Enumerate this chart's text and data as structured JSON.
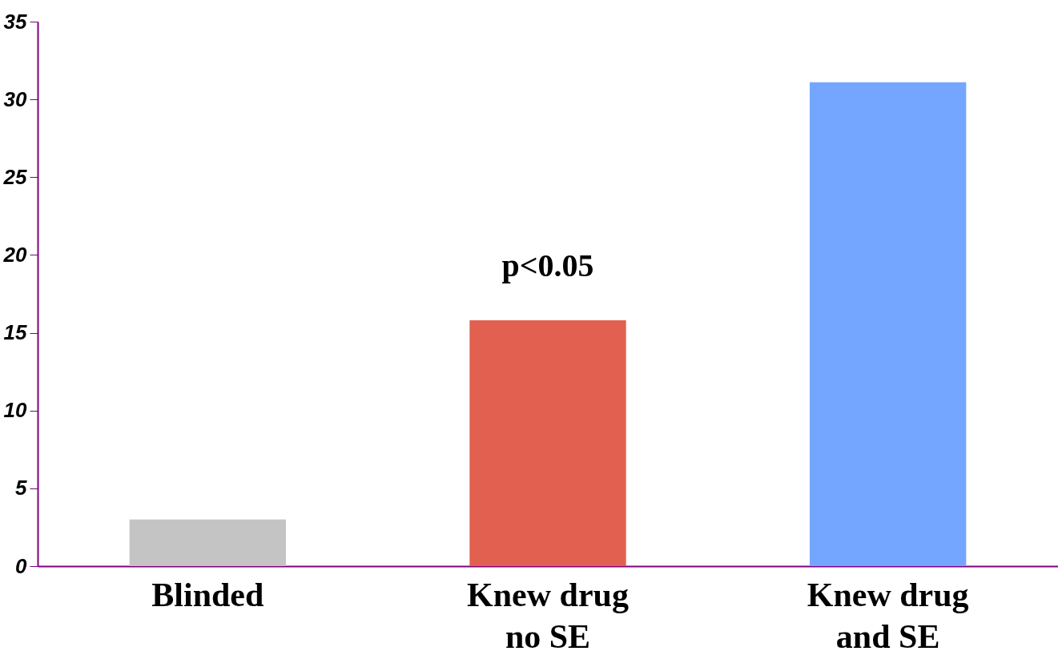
{
  "chart_data": {
    "type": "bar",
    "categories": [
      "Blinded",
      "Knew drug\nno SE",
      "Knew drug\nand SE"
    ],
    "values": [
      3.0,
      15.8,
      31.1
    ],
    "colors": [
      "#c4c4c4",
      "#e2604f",
      "#74a6ff"
    ],
    "ylim": [
      0,
      35
    ],
    "yticks": [
      0,
      5,
      10,
      15,
      20,
      25,
      30,
      35
    ],
    "annotations": [
      "p<0.05"
    ]
  }
}
